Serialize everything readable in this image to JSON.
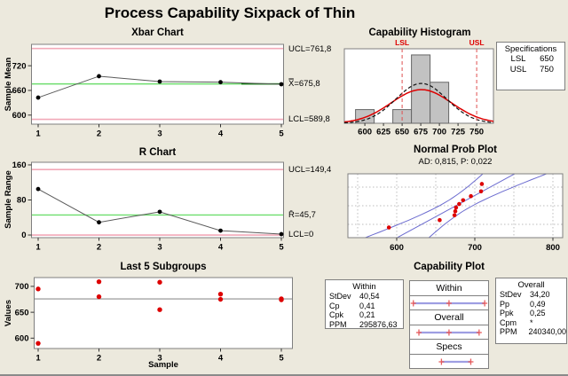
{
  "title": "Process Capability Sixpack of Thin",
  "colors": {
    "background": "#ece9dd",
    "plot_bg": "#ffffff",
    "frame": "#7f7f7f",
    "control_limit_pink": "#f2a9b8",
    "center_green": "#6ede6e",
    "center_dark_green": "#0f7a0f",
    "data_line_gray": "#5a5a5a",
    "point_black": "#000000",
    "point_red": "#dd0000",
    "bar_gray": "#c2c2c2",
    "bar_edge": "#666666",
    "blue_line": "#6b6bcf",
    "grid_gray": "#bcbcbc",
    "interval_blue": "#9e9ee2",
    "marker_red": "#e85c5c"
  },
  "chart_data": [
    {
      "id": "xbar",
      "type": "line",
      "title": "Xbar Chart",
      "ylabel": "Sample Mean",
      "x": [
        1,
        2,
        3,
        4,
        5
      ],
      "values": [
        642.5,
        694.5,
        681.5,
        680,
        675
      ],
      "ucl": 761.8,
      "center": 675.8,
      "lcl": 589.8,
      "ucl_label": "UCL=761,8",
      "center_label": "X̿=675,8",
      "lcl_label": "LCL=589,8",
      "yticks": [
        600,
        660,
        720
      ],
      "ylim": [
        578,
        772
      ]
    },
    {
      "id": "hist",
      "type": "histogram",
      "title": "Capability Histogram",
      "bin_start": 587.5,
      "bin_width": 25,
      "counts": [
        1,
        0,
        1,
        5,
        3
      ],
      "xticks": [
        600,
        625,
        650,
        675,
        700,
        725,
        750
      ],
      "xlim": [
        572.5,
        772.5
      ],
      "count_max": 5.45,
      "lsl": 650,
      "usl": 750,
      "lsl_label": "LSL",
      "usl_label": "USL",
      "mean": 675.8,
      "overall_stdev": 34.2,
      "within_stdev": 40.54,
      "n": 10
    },
    {
      "id": "rchart",
      "type": "line",
      "title": "R Chart",
      "ylabel": "Sample Range",
      "x": [
        1,
        2,
        3,
        4,
        5
      ],
      "values": [
        105,
        29,
        53,
        10,
        2
      ],
      "ucl": 149.4,
      "center": 45.7,
      "lcl": 0,
      "ucl_label": "UCL=149,4",
      "center_label": "R̄=45,7",
      "lcl_label": "LCL=0",
      "yticks": [
        0,
        80,
        160
      ],
      "ylim": [
        -6,
        166
      ]
    },
    {
      "id": "prob",
      "type": "probplot",
      "title": "Normal Prob Plot",
      "subtitle": "AD: 0,815, P: 0,022",
      "values": [
        590,
        655,
        674,
        675,
        676,
        680,
        685,
        695,
        708,
        709
      ],
      "scores": [
        -1.5,
        -0.99,
        -0.66,
        -0.38,
        -0.12,
        0.12,
        0.38,
        0.66,
        0.99,
        1.5
      ],
      "mean": 675.8,
      "stdev": 34.2,
      "n": 10,
      "xticks": [
        600,
        700,
        800
      ],
      "xlim": [
        537.5,
        812.5
      ],
      "zlim": [
        -2.2,
        2.2
      ],
      "grid_x": [
        550,
        600,
        650,
        700,
        750,
        800
      ],
      "grid_z": [
        1.28,
        0,
        -1.28
      ]
    },
    {
      "id": "last5",
      "type": "scatter",
      "title": "Last 5 Subgroups",
      "xlabel": "Sample",
      "ylabel": "Values",
      "subgroups": [
        [
          590,
          695
        ],
        [
          680,
          709
        ],
        [
          655,
          708
        ],
        [
          675,
          685
        ],
        [
          674,
          676
        ]
      ],
      "center": 675.8,
      "xticks": [
        1,
        2,
        3,
        4,
        5
      ],
      "yticks": [
        600,
        650,
        700
      ],
      "ylim": [
        580,
        717
      ]
    },
    {
      "id": "cap",
      "type": "intervals",
      "title": "Capability Plot",
      "domain": [
        552,
        800
      ],
      "sections": [
        {
          "label": "Within",
          "lo": 554.2,
          "mid": 675.8,
          "hi": 797.4
        },
        {
          "label": "Overall",
          "lo": 573.2,
          "mid": 675.8,
          "hi": 778.4
        },
        {
          "label": "Specs",
          "lo": 650,
          "hi": 750
        }
      ]
    }
  ],
  "spec_box": {
    "title": "Specifications",
    "rows": [
      {
        "label": "LSL",
        "value": "650"
      },
      {
        "label": "USL",
        "value": "750"
      }
    ]
  },
  "within_box": {
    "title": "Within",
    "rows": [
      {
        "label": "StDev",
        "value": "40,54"
      },
      {
        "label": "Cp",
        "value": "0,41"
      },
      {
        "label": "Cpk",
        "value": "0,21"
      },
      {
        "label": "PPM",
        "value": "295876,63"
      }
    ]
  },
  "overall_box": {
    "title": "Overall",
    "rows": [
      {
        "label": "StDev",
        "value": "34,20"
      },
      {
        "label": "Pp",
        "value": "0,49"
      },
      {
        "label": "Ppk",
        "value": "0,25"
      },
      {
        "label": "Cpm",
        "value": "*"
      },
      {
        "label": "PPM",
        "value": "240340,00"
      }
    ]
  }
}
